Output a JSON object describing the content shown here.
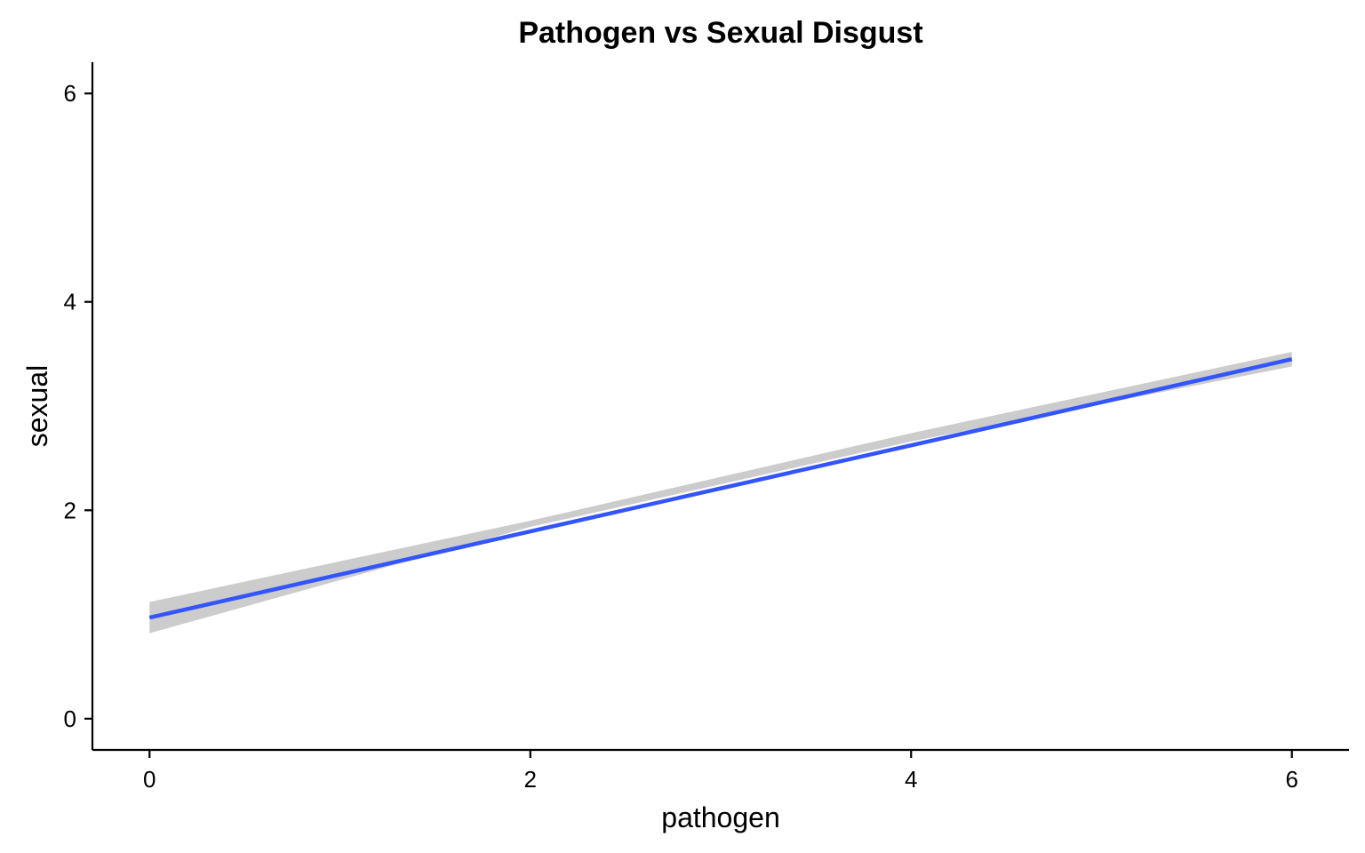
{
  "chart_data": {
    "type": "line",
    "title": "Pathogen vs Sexual Disgust",
    "xlabel": "pathogen",
    "ylabel": "sexual",
    "xlim": [
      -0.3,
      6.3
    ],
    "ylim": [
      -0.3,
      6.3
    ],
    "x_ticks": [
      0,
      2,
      4,
      6
    ],
    "y_ticks": [
      0,
      2,
      4,
      6
    ],
    "grid": false,
    "legend": "none",
    "series": [
      {
        "kind": "regression-line",
        "x": [
          0,
          6
        ],
        "y": [
          0.97,
          3.45
        ],
        "color": "#3355ff"
      }
    ],
    "confidence_band": {
      "x": [
        0,
        2,
        4,
        6
      ],
      "lower": [
        0.82,
        1.84,
        2.66,
        3.38
      ],
      "upper": [
        1.12,
        1.9,
        2.74,
        3.52
      ],
      "color": "#cccccc"
    }
  }
}
